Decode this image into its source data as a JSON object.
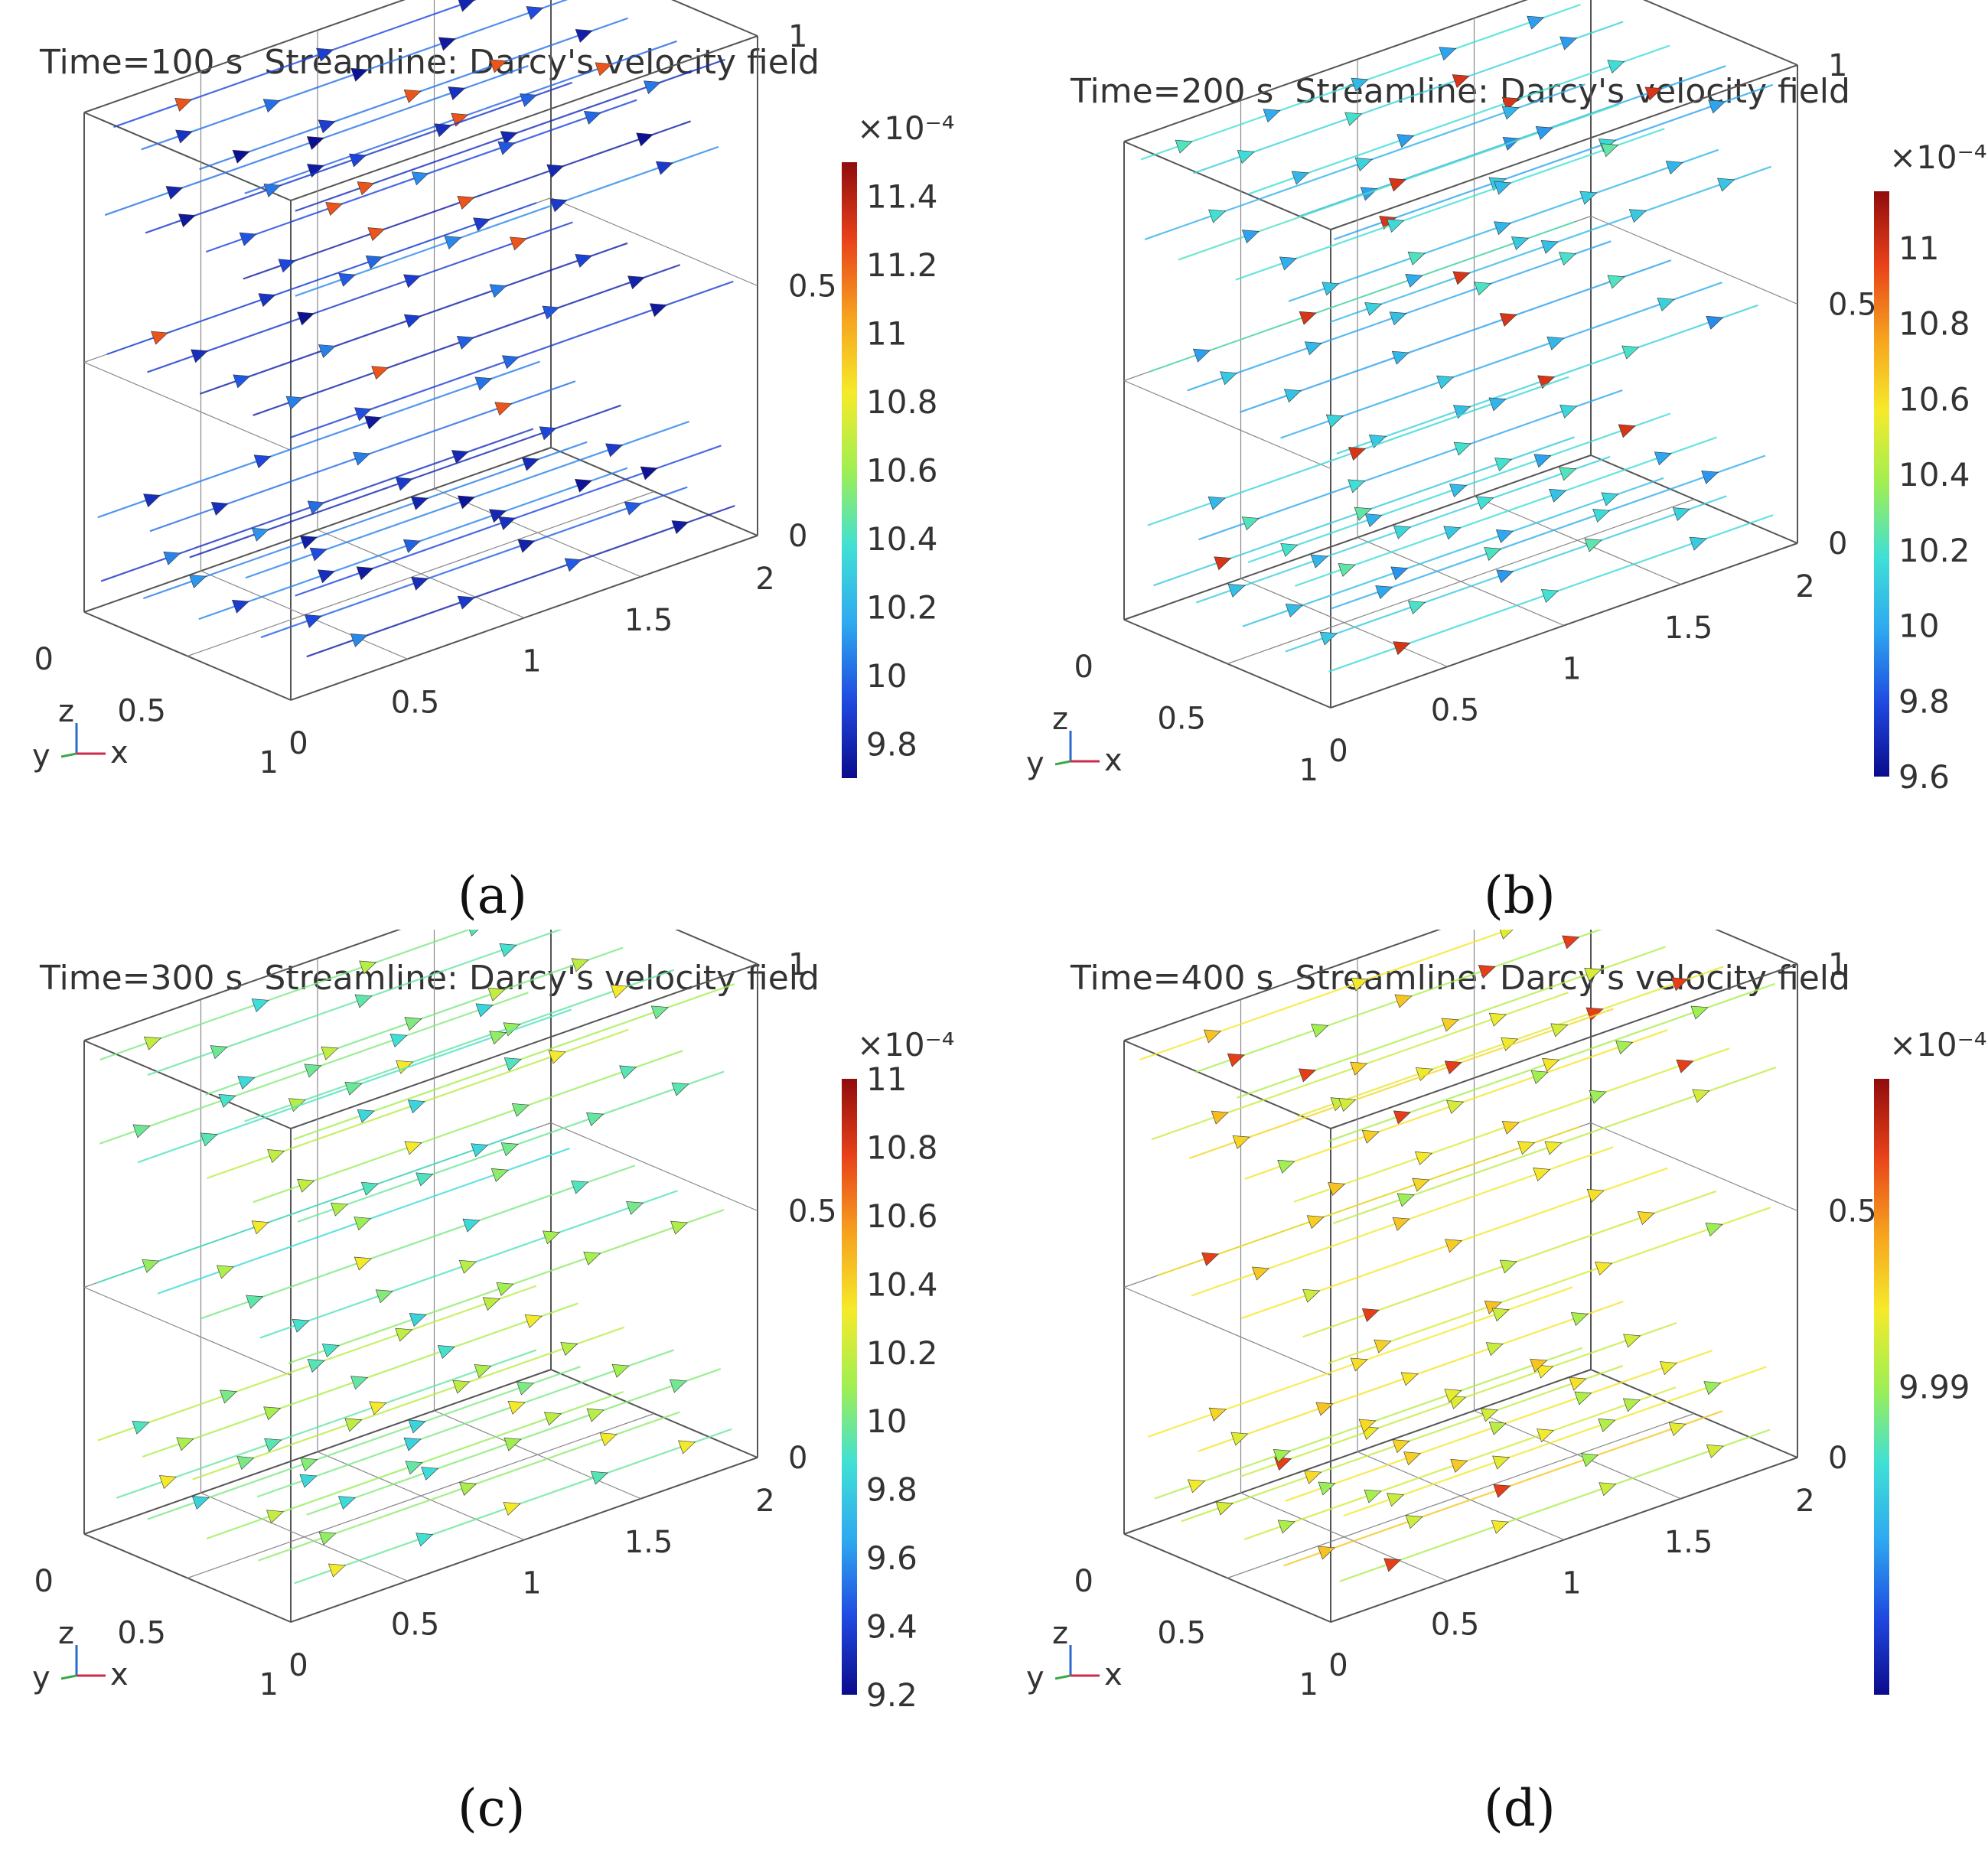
{
  "chart_data": [
    {
      "type": "streamline-3d",
      "panel": "a",
      "title": "Time=100 s  Streamline: Darcy's velocity field",
      "caption": "(a)",
      "axes": {
        "x_ticks": [
          "0",
          "0.5",
          "1",
          "1.5",
          "2"
        ],
        "y_ticks": [
          "0",
          "0.5",
          "1"
        ],
        "z_ticks": [
          "0",
          "0.5",
          "1"
        ],
        "triad": {
          "z": "z",
          "y": "y",
          "x": "x"
        }
      },
      "colorbar": {
        "exponent": "×10⁻⁴",
        "range": [
          9.7,
          11.5
        ],
        "ticks": [
          11.4,
          11.2,
          11,
          10.8,
          10.6,
          10.4,
          10.2,
          10,
          9.8
        ],
        "tick_labels": [
          "11.4",
          "11.2",
          "11",
          "10.8",
          "10.6",
          "10.4",
          "10.2",
          "10",
          "9.8"
        ]
      },
      "field_level": 0.12,
      "accent_level": 0.85
    },
    {
      "type": "streamline-3d",
      "panel": "b",
      "title": "Time=200 s  Streamline: Darcy's velocity field",
      "caption": "(b)",
      "axes": {
        "x_ticks": [
          "0",
          "0.5",
          "1",
          "1.5",
          "2"
        ],
        "y_ticks": [
          "0",
          "0.5",
          "1"
        ],
        "z_ticks": [
          "0",
          "0.5",
          "1"
        ],
        "triad": {
          "z": "z",
          "y": "y",
          "x": "x"
        }
      },
      "colorbar": {
        "exponent": "×10⁻⁴",
        "range": [
          9.6,
          11.15
        ],
        "ticks": [
          11,
          10.8,
          10.6,
          10.4,
          10.2,
          10,
          9.8,
          9.6
        ],
        "tick_labels": [
          "11",
          "10.8",
          "10.6",
          "10.4",
          "10.2",
          "10",
          "9.8",
          "9.6"
        ]
      },
      "field_level": 0.32,
      "accent_level": 0.9
    },
    {
      "type": "streamline-3d",
      "panel": "c",
      "title": "Time=300 s  Streamline: Darcy's velocity field",
      "caption": "(c)",
      "axes": {
        "x_ticks": [
          "0",
          "0.5",
          "1",
          "1.5",
          "2"
        ],
        "y_ticks": [
          "0",
          "0.5",
          "1"
        ],
        "z_ticks": [
          "0",
          "0.5",
          "1"
        ],
        "triad": {
          "z": "z",
          "y": "y",
          "x": "x"
        }
      },
      "colorbar": {
        "exponent": "×10⁻⁴",
        "range": [
          9.2,
          11
        ],
        "ticks": [
          11,
          10.8,
          10.6,
          10.4,
          10.2,
          10,
          9.8,
          9.6,
          9.4,
          9.2
        ],
        "tick_labels": [
          "11",
          "10.8",
          "10.6",
          "10.4",
          "10.2",
          "10",
          "9.8",
          "9.6",
          "9.4",
          "9.2"
        ]
      },
      "field_level": 0.45,
      "accent_level": 0.62
    },
    {
      "type": "streamline-3d",
      "panel": "d",
      "title": "Time=400 s  Streamline: Darcy's velocity field",
      "caption": "(d)",
      "axes": {
        "x_ticks": [
          "0",
          "0.5",
          "1",
          "1.5",
          "2"
        ],
        "y_ticks": [
          "0",
          "0.5",
          "1"
        ],
        "z_ticks": [
          "0",
          "0.5",
          "1"
        ],
        "triad": {
          "z": "z",
          "y": "y",
          "x": "x"
        }
      },
      "colorbar": {
        "exponent": "×10⁻⁴",
        "range": [
          9.97,
          10.01
        ],
        "ticks": [
          9.99
        ],
        "tick_labels": [
          "9.99"
        ]
      },
      "field_level": 0.6,
      "accent_level": 0.88
    }
  ],
  "colors": {
    "colormap": [
      "#0b0b8c",
      "#1f49e0",
      "#2ea8f0",
      "#3fe0d6",
      "#9fef52",
      "#f6ea2a",
      "#f6a21e",
      "#e8411a",
      "#900c0c"
    ],
    "axes_line": "#555555",
    "triad_x": "#cc2a4a",
    "triad_y": "#3aa84a",
    "triad_z": "#2a6ad0"
  }
}
